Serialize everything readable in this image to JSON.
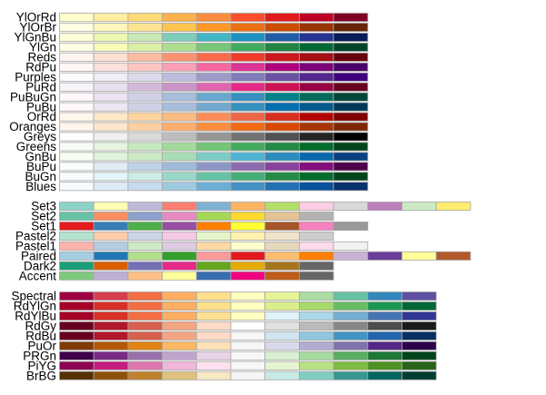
{
  "chart_data": {
    "type": "table",
    "sequential": [
      {
        "name": "YlOrRd",
        "colors": [
          "#FFFFCC",
          "#FFEDA0",
          "#FED976",
          "#FEB24C",
          "#FD8D3C",
          "#FC4E2A",
          "#E31A1C",
          "#BD0026",
          "#800026"
        ]
      },
      {
        "name": "YlOrBr",
        "colors": [
          "#FFFFE5",
          "#FFF7BC",
          "#FEE391",
          "#FEC44F",
          "#FE9929",
          "#EC7014",
          "#CC4C02",
          "#993404",
          "#662506"
        ]
      },
      {
        "name": "YlGnBu",
        "colors": [
          "#FFFFD9",
          "#EDF8B1",
          "#C7E9B4",
          "#7FCDBB",
          "#41B6C4",
          "#1D91C0",
          "#225EA8",
          "#253494",
          "#081D58"
        ]
      },
      {
        "name": "YlGn",
        "colors": [
          "#FFFFE5",
          "#F7FCB9",
          "#D9F0A3",
          "#ADDD8E",
          "#78C679",
          "#41AB5D",
          "#238443",
          "#006837",
          "#004529"
        ]
      },
      {
        "name": "Reds",
        "colors": [
          "#FFF5F0",
          "#FEE0D2",
          "#FCBBA1",
          "#FC9272",
          "#FB6A4A",
          "#EF3B2C",
          "#CB181D",
          "#A50F15",
          "#67000D"
        ]
      },
      {
        "name": "RdPu",
        "colors": [
          "#FFF7F3",
          "#FDE0DD",
          "#FCC5C0",
          "#FA9FB5",
          "#F768A1",
          "#DD3497",
          "#AE017E",
          "#7A0177",
          "#49006A"
        ]
      },
      {
        "name": "Purples",
        "colors": [
          "#FCFBFD",
          "#EFEDF5",
          "#DADAEB",
          "#BCBDDC",
          "#9E9AC8",
          "#807DBA",
          "#6A51A3",
          "#54278F",
          "#3F007D"
        ]
      },
      {
        "name": "PuRd",
        "colors": [
          "#F7F4F9",
          "#E7E1EF",
          "#D4B9DA",
          "#C994C7",
          "#DF65B0",
          "#E7298A",
          "#CE1256",
          "#980043",
          "#67001F"
        ]
      },
      {
        "name": "PuBuGn",
        "colors": [
          "#FFF7FB",
          "#ECE2F0",
          "#D0D1E6",
          "#A6BDDB",
          "#67A9CF",
          "#3690C0",
          "#02818A",
          "#016C59",
          "#014636"
        ]
      },
      {
        "name": "PuBu",
        "colors": [
          "#FFF7FB",
          "#ECE7F2",
          "#D0D1E6",
          "#A6BDDB",
          "#74A9CF",
          "#3690C0",
          "#0570B0",
          "#045A8D",
          "#023858"
        ]
      },
      {
        "name": "OrRd",
        "colors": [
          "#FFF7EC",
          "#FEE8C8",
          "#FDD49E",
          "#FDBB84",
          "#FC8D59",
          "#EF6548",
          "#D7301F",
          "#B30000",
          "#7F0000"
        ]
      },
      {
        "name": "Oranges",
        "colors": [
          "#FFF5EB",
          "#FEE6CE",
          "#FDD0A2",
          "#FDAE6B",
          "#FD8D3C",
          "#F16913",
          "#D94801",
          "#A63603",
          "#7F2704"
        ]
      },
      {
        "name": "Greys",
        "colors": [
          "#FFFFFF",
          "#F0F0F0",
          "#D9D9D9",
          "#BDBDBD",
          "#969696",
          "#737373",
          "#525252",
          "#252525",
          "#000000"
        ]
      },
      {
        "name": "Greens",
        "colors": [
          "#F7FCF5",
          "#E5F5E0",
          "#C7E9C0",
          "#A1D99B",
          "#74C476",
          "#41AB5D",
          "#238B45",
          "#006D2C",
          "#00441B"
        ]
      },
      {
        "name": "GnBu",
        "colors": [
          "#F7FCF0",
          "#E0F3DB",
          "#CCEBC5",
          "#A8DDB5",
          "#7BCCC4",
          "#4EB3D3",
          "#2B8CBE",
          "#0868AC",
          "#084081"
        ]
      },
      {
        "name": "BuPu",
        "colors": [
          "#F7FCFD",
          "#E0ECF4",
          "#BFD3E6",
          "#9EBCDA",
          "#8C96C6",
          "#8C6BB1",
          "#88419D",
          "#810F7C",
          "#4D004B"
        ]
      },
      {
        "name": "BuGn",
        "colors": [
          "#F7FCFD",
          "#E5F5F9",
          "#CCECE6",
          "#99D8C9",
          "#66C2A4",
          "#41AE76",
          "#238B45",
          "#006D2C",
          "#00441B"
        ]
      },
      {
        "name": "Blues",
        "colors": [
          "#F7FBFF",
          "#DEEBF7",
          "#C6DBEF",
          "#9ECAE1",
          "#6BAED6",
          "#4292C6",
          "#2171B5",
          "#08519C",
          "#08306B"
        ]
      }
    ],
    "qualitative": [
      {
        "name": "Set3",
        "colors": [
          "#8DD3C7",
          "#FFFFB3",
          "#BEBADA",
          "#FB8072",
          "#80B1D3",
          "#FDB462",
          "#B3DE69",
          "#FCCDE5",
          "#D9D9D9",
          "#BC80BD",
          "#CCEBC5",
          "#FFED6F"
        ]
      },
      {
        "name": "Set2",
        "colors": [
          "#66C2A5",
          "#FC8D62",
          "#8DA0CB",
          "#E78AC3",
          "#A6D854",
          "#FFD92F",
          "#E5C494",
          "#B3B3B3"
        ]
      },
      {
        "name": "Set1",
        "colors": [
          "#E41A1C",
          "#377EB8",
          "#4DAF4A",
          "#984EA3",
          "#FF7F00",
          "#FFFF33",
          "#A65628",
          "#F781BF",
          "#999999"
        ]
      },
      {
        "name": "Pastel2",
        "colors": [
          "#B3E2CD",
          "#FDCDAC",
          "#CBD5E8",
          "#F4CAE4",
          "#E6F5C9",
          "#FFF2AE",
          "#F1E2CC",
          "#CCCCCC"
        ]
      },
      {
        "name": "Pastel1",
        "colors": [
          "#FBB4AE",
          "#B3CDE3",
          "#CCEBC5",
          "#DECBE4",
          "#FED9A6",
          "#FFFFCC",
          "#E5D8BD",
          "#FDDAEC",
          "#F2F2F2"
        ]
      },
      {
        "name": "Paired",
        "colors": [
          "#A6CEE3",
          "#1F78B4",
          "#B2DF8A",
          "#33A02C",
          "#FB9A99",
          "#E31A1C",
          "#FDBF6F",
          "#FF7F00",
          "#CAB2D6",
          "#6A3D9A",
          "#FFFF99",
          "#B15928"
        ]
      },
      {
        "name": "Dark2",
        "colors": [
          "#1B9E77",
          "#D95F02",
          "#7570B3",
          "#E7298A",
          "#66A61E",
          "#E6AB02",
          "#A6761D",
          "#666666"
        ]
      },
      {
        "name": "Accent",
        "colors": [
          "#7FC97F",
          "#BEAED4",
          "#FDC086",
          "#FFFF99",
          "#386CB0",
          "#F0027F",
          "#BF5B17",
          "#666666"
        ]
      }
    ],
    "diverging": [
      {
        "name": "Spectral",
        "colors": [
          "#9E0142",
          "#D53E4F",
          "#F46D43",
          "#FDAE61",
          "#FEE08B",
          "#FFFFBF",
          "#E6F598",
          "#ABDDA4",
          "#66C2A5",
          "#3288BD",
          "#5E4FA2"
        ]
      },
      {
        "name": "RdYlGn",
        "colors": [
          "#A50026",
          "#D73027",
          "#F46D43",
          "#FDAE61",
          "#FEE08B",
          "#FFFFBF",
          "#D9EF8B",
          "#A6D96A",
          "#66BD63",
          "#1A9850",
          "#006837"
        ]
      },
      {
        "name": "RdYlBu",
        "colors": [
          "#A50026",
          "#D73027",
          "#F46D43",
          "#FDAE61",
          "#FEE090",
          "#FFFFBF",
          "#E0F3F8",
          "#ABD9E9",
          "#74ADD1",
          "#4575B4",
          "#313695"
        ]
      },
      {
        "name": "RdGy",
        "colors": [
          "#67001F",
          "#B2182B",
          "#D6604D",
          "#F4A582",
          "#FDDBC7",
          "#FFFFFF",
          "#E0E0E0",
          "#BABABA",
          "#878787",
          "#4D4D4D",
          "#1A1A1A"
        ]
      },
      {
        "name": "RdBu",
        "colors": [
          "#67001F",
          "#B2182B",
          "#D6604D",
          "#F4A582",
          "#FDDBC7",
          "#F7F7F7",
          "#D1E5F0",
          "#92C5DE",
          "#4393C3",
          "#2166AC",
          "#053061"
        ]
      },
      {
        "name": "PuOr",
        "colors": [
          "#7F3B08",
          "#B35806",
          "#E08214",
          "#FDB863",
          "#FEE0B6",
          "#F7F7F7",
          "#D8DAEB",
          "#B2ABD2",
          "#8073AC",
          "#542788",
          "#2D004B"
        ]
      },
      {
        "name": "PRGn",
        "colors": [
          "#40004B",
          "#762A83",
          "#9970AB",
          "#C2A5CF",
          "#E7D4E8",
          "#F7F7F7",
          "#D9F0D3",
          "#A6DBA0",
          "#5AAE61",
          "#1B7837",
          "#00441B"
        ]
      },
      {
        "name": "PiYG",
        "colors": [
          "#8E0152",
          "#C51B7D",
          "#DE77AE",
          "#F1B6DA",
          "#FDE0EF",
          "#F7F7F7",
          "#E6F5D0",
          "#B8E186",
          "#7FBC41",
          "#4D9221",
          "#276419"
        ]
      },
      {
        "name": "BrBG",
        "colors": [
          "#543005",
          "#8C510A",
          "#BF812D",
          "#DFC27D",
          "#F6E8C3",
          "#F5F5F5",
          "#C7EAE5",
          "#80CDC1",
          "#35978F",
          "#01665E",
          "#003C30"
        ]
      }
    ]
  }
}
